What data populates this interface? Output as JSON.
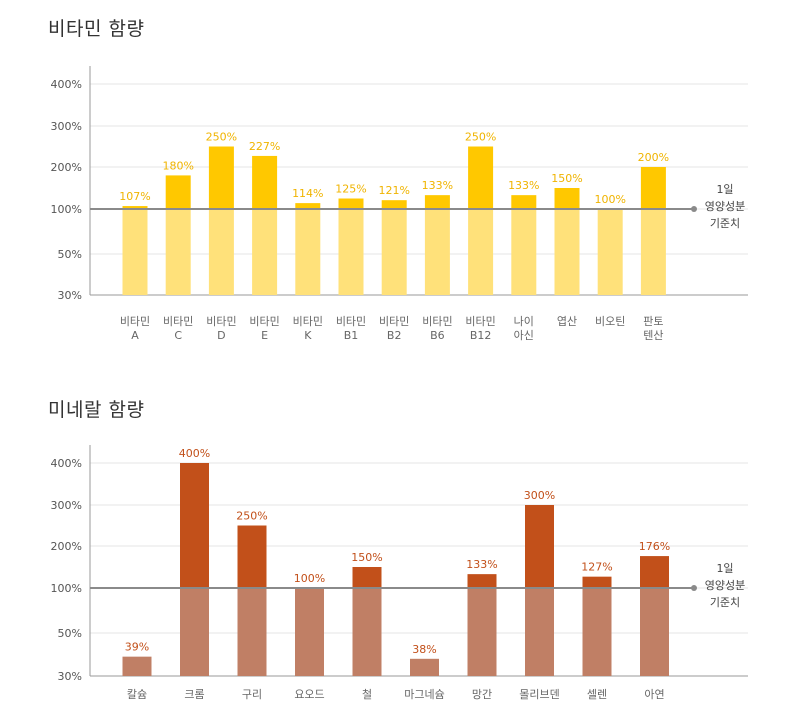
{
  "chart_data": [
    {
      "type": "bar",
      "title": "비타민 함량",
      "categories": [
        [
          "비타민",
          "A"
        ],
        [
          "비타민",
          "C"
        ],
        [
          "비타민",
          "D"
        ],
        [
          "비타민",
          "E"
        ],
        [
          "비타민",
          "K"
        ],
        [
          "비타민",
          "B1"
        ],
        [
          "비타민",
          "B2"
        ],
        [
          "비타민",
          "B6"
        ],
        [
          "비타민",
          "B12"
        ],
        [
          "나이",
          "아신"
        ],
        [
          "엽산"
        ],
        [
          "비오틴"
        ],
        [
          "판토",
          "텐산"
        ]
      ],
      "values": [
        107,
        180,
        250,
        227,
        114,
        125,
        121,
        133,
        250,
        133,
        150,
        100,
        200
      ],
      "value_labels": [
        "107%",
        "180%",
        "250%",
        "227%",
        "114%",
        "125%",
        "121%",
        "133%",
        "250%",
        "133%",
        "150%",
        "100%",
        "200%"
      ],
      "yticks": [
        "30%",
        "50%",
        "100%",
        "200%",
        "300%",
        "400%"
      ],
      "ytick_values": [
        30,
        50,
        100,
        200,
        300,
        400
      ],
      "ylim": [
        30,
        400
      ],
      "reference": {
        "value": 100,
        "label": [
          "1일",
          "영양성분",
          "기준치"
        ]
      },
      "colors": {
        "above": "#ffc800",
        "below": "#ffe17a",
        "label": "#f0b400"
      }
    },
    {
      "type": "bar",
      "title": "미네랄 함량",
      "categories": [
        [
          "칼슘"
        ],
        [
          "크롬"
        ],
        [
          "구리"
        ],
        [
          "요오드"
        ],
        [
          "철"
        ],
        [
          "마그네슘"
        ],
        [
          "망간"
        ],
        [
          "몰리브덴"
        ],
        [
          "셀렌"
        ],
        [
          "아연"
        ]
      ],
      "values": [
        39,
        400,
        250,
        100,
        150,
        38,
        133,
        300,
        127,
        176
      ],
      "value_labels": [
        "39%",
        "400%",
        "250%",
        "100%",
        "150%",
        "38%",
        "133%",
        "300%",
        "127%",
        "176%"
      ],
      "yticks": [
        "30%",
        "50%",
        "100%",
        "200%",
        "300%",
        "400%"
      ],
      "ytick_values": [
        30,
        50,
        100,
        200,
        300,
        400
      ],
      "ylim": [
        30,
        400
      ],
      "reference": {
        "value": 100,
        "label": [
          "1일",
          "영양성분",
          "기준치"
        ]
      },
      "colors": {
        "above": "#c2501a",
        "below": "#c07f65",
        "label": "#c2501a"
      }
    }
  ]
}
